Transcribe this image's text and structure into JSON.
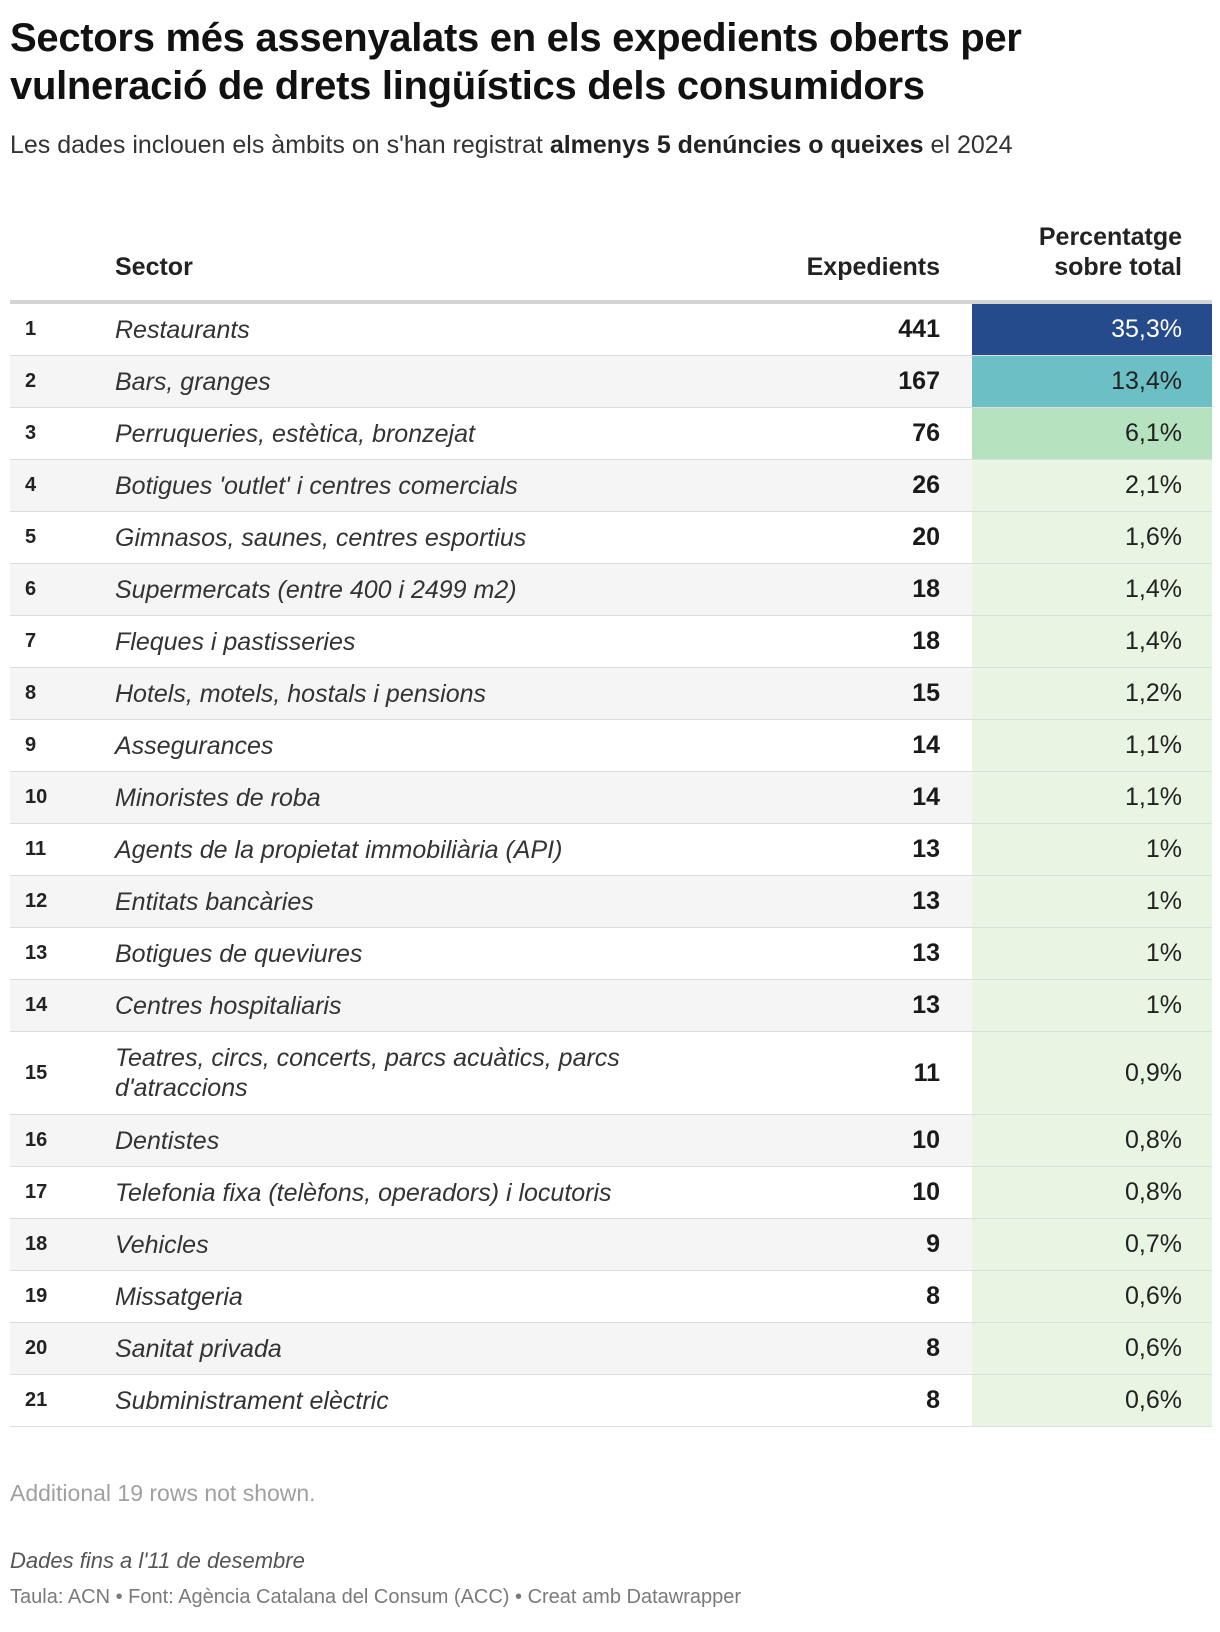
{
  "title": "Sectors més assenyalats en els expedients oberts per vulneració de drets lingüístics dels consumidors",
  "subtitle": {
    "prefix": "Les dades inclouen els àmbits on s'han registrat ",
    "emphasis": "almenys 5 denúncies o queixes",
    "suffix": " el 2024"
  },
  "columns": {
    "sector": "Sector",
    "expedients": "Expedients",
    "percentage_line1": "Percentatge",
    "percentage_line2": "sobre total"
  },
  "chart_data": {
    "type": "table",
    "title": "Sectors més assenyalats en els expedients oberts per vulneració de drets lingüístics dels consumidors",
    "columns": [
      "Sector",
      "Expedients",
      "Percentatge sobre total"
    ],
    "colors": {
      "high": "#264b8c",
      "mid": "#6cc0c5",
      "low": "#b6e2bf",
      "lowest": "#e8f5e3",
      "text_dark": "#222222",
      "text_light": "#ffffff"
    },
    "rows": [
      {
        "rank": "1",
        "sector": "Restaurants",
        "expedients": 441,
        "pct_value": 35.3,
        "pct": "35,3%"
      },
      {
        "rank": "2",
        "sector": "Bars, granges",
        "expedients": 167,
        "pct_value": 13.4,
        "pct": "13,4%"
      },
      {
        "rank": "3",
        "sector": "Perruqueries, estètica, bronzejat",
        "expedients": 76,
        "pct_value": 6.1,
        "pct": "6,1%"
      },
      {
        "rank": "4",
        "sector": "Botigues 'outlet' i centres comercials",
        "expedients": 26,
        "pct_value": 2.1,
        "pct": "2,1%"
      },
      {
        "rank": "5",
        "sector": "Gimnasos, saunes, centres esportius",
        "expedients": 20,
        "pct_value": 1.6,
        "pct": "1,6%"
      },
      {
        "rank": "6",
        "sector": "Supermercats (entre 400 i 2499 m2)",
        "expedients": 18,
        "pct_value": 1.4,
        "pct": "1,4%"
      },
      {
        "rank": "7",
        "sector": "Fleques i pastisseries",
        "expedients": 18,
        "pct_value": 1.4,
        "pct": "1,4%"
      },
      {
        "rank": "8",
        "sector": "Hotels, motels, hostals i pensions",
        "expedients": 15,
        "pct_value": 1.2,
        "pct": "1,2%"
      },
      {
        "rank": "9",
        "sector": "Assegurances",
        "expedients": 14,
        "pct_value": 1.1,
        "pct": "1,1%"
      },
      {
        "rank": "10",
        "sector": "Minoristes de roba",
        "expedients": 14,
        "pct_value": 1.1,
        "pct": "1,1%"
      },
      {
        "rank": "11",
        "sector": "Agents de la propietat immobiliària (API)",
        "expedients": 13,
        "pct_value": 1.0,
        "pct": "1%"
      },
      {
        "rank": "12",
        "sector": "Entitats bancàries",
        "expedients": 13,
        "pct_value": 1.0,
        "pct": "1%"
      },
      {
        "rank": "13",
        "sector": "Botigues de queviures",
        "expedients": 13,
        "pct_value": 1.0,
        "pct": "1%"
      },
      {
        "rank": "14",
        "sector": "Centres hospitaliaris",
        "expedients": 13,
        "pct_value": 1.0,
        "pct": "1%"
      },
      {
        "rank": "15",
        "sector": "Teatres, circs, concerts, parcs acuàtics, parcs d'atraccions",
        "expedients": 11,
        "pct_value": 0.9,
        "pct": "0,9%"
      },
      {
        "rank": "16",
        "sector": "Dentistes",
        "expedients": 10,
        "pct_value": 0.8,
        "pct": "0,8%"
      },
      {
        "rank": "17",
        "sector": "Telefonia fixa (telèfons, operadors) i locutoris",
        "expedients": 10,
        "pct_value": 0.8,
        "pct": "0,8%"
      },
      {
        "rank": "18",
        "sector": "Vehicles",
        "expedients": 9,
        "pct_value": 0.7,
        "pct": "0,7%"
      },
      {
        "rank": "19",
        "sector": "Missatgeria",
        "expedients": 8,
        "pct_value": 0.6,
        "pct": "0,6%"
      },
      {
        "rank": "20",
        "sector": "Sanitat privada",
        "expedients": 8,
        "pct_value": 0.6,
        "pct": "0,6%"
      },
      {
        "rank": "21",
        "sector": "Subministrament elèctric",
        "expedients": 8,
        "pct_value": 0.6,
        "pct": "0,6%"
      }
    ]
  },
  "notes": {
    "rows_hidden": "Additional 19 rows not shown.",
    "date": "Dades fins a l'11 de desembre",
    "source": "Taula: ACN • Font: Agència Catalana del Consum (ACC) • Creat amb Datawrapper"
  }
}
